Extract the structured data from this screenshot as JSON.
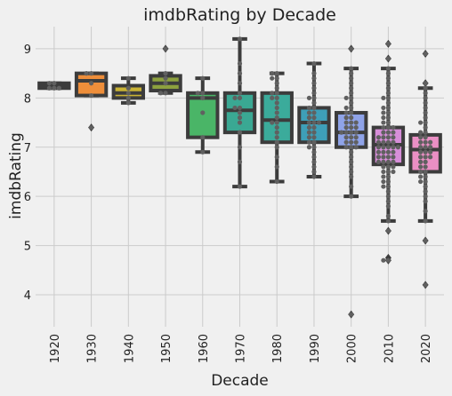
{
  "chart_data": {
    "type": "box",
    "title": "imdbRating by Decade",
    "xlabel": "Decade",
    "ylabel": "imdbRating",
    "ylim": [
      3.35,
      9.45
    ],
    "yticks": [
      4,
      5,
      6,
      7,
      8,
      9
    ],
    "grid": true,
    "categories": [
      "1920",
      "1930",
      "1940",
      "1950",
      "1960",
      "1970",
      "1980",
      "1990",
      "2000",
      "2010",
      "2020"
    ],
    "boxes": [
      {
        "decade": "1920",
        "color": "#2c8ed6",
        "q1": 8.2,
        "median": 8.25,
        "q3": 8.3,
        "whisker_low": 8.2,
        "whisker_high": 8.3,
        "outliers": []
      },
      {
        "decade": "1930",
        "color": "#ee8e3a",
        "q1": 8.05,
        "median": 8.35,
        "q3": 8.5,
        "whisker_low": 8.05,
        "whisker_high": 8.5,
        "outliers": [
          7.4
        ]
      },
      {
        "decade": "1940",
        "color": "#c9b335",
        "q1": 8.0,
        "median": 8.1,
        "q3": 8.25,
        "whisker_low": 7.9,
        "whisker_high": 8.4,
        "outliers": []
      },
      {
        "decade": "1950",
        "color": "#8da13e",
        "q1": 8.15,
        "median": 8.3,
        "q3": 8.45,
        "whisker_low": 8.1,
        "whisker_high": 8.5,
        "outliers": [
          9.0
        ]
      },
      {
        "decade": "1960",
        "color": "#4ab567",
        "q1": 7.2,
        "median": 8.0,
        "q3": 8.1,
        "whisker_low": 6.9,
        "whisker_high": 8.4,
        "outliers": []
      },
      {
        "decade": "1970",
        "color": "#3aa893",
        "q1": 7.3,
        "median": 7.75,
        "q3": 8.1,
        "whisker_low": 6.2,
        "whisker_high": 9.2,
        "outliers": []
      },
      {
        "decade": "1980",
        "color": "#3bab9b",
        "q1": 7.1,
        "median": 7.55,
        "q3": 8.1,
        "whisker_low": 6.3,
        "whisker_high": 8.5,
        "outliers": []
      },
      {
        "decade": "1990",
        "color": "#3e9fb8",
        "q1": 7.1,
        "median": 7.5,
        "q3": 7.8,
        "whisker_low": 6.4,
        "whisker_high": 8.7,
        "outliers": []
      },
      {
        "decade": "2000",
        "color": "#8fa3e8",
        "q1": 7.0,
        "median": 7.3,
        "q3": 7.7,
        "whisker_low": 6.0,
        "whisker_high": 8.6,
        "outliers": [
          3.6,
          9.0
        ]
      },
      {
        "decade": "2010",
        "color": "#d78ed9",
        "q1": 6.65,
        "median": 7.05,
        "q3": 7.4,
        "whisker_low": 5.5,
        "whisker_high": 8.6,
        "outliers": [
          4.7,
          4.75,
          5.3,
          8.8,
          9.1
        ]
      },
      {
        "decade": "2020",
        "color": "#ea8fc4",
        "q1": 6.5,
        "median": 6.95,
        "q3": 7.25,
        "whisker_low": 5.5,
        "whisker_high": 8.2,
        "outliers": [
          4.2,
          5.1,
          8.3,
          8.9
        ]
      }
    ],
    "swarm": [
      {
        "decade": "1920",
        "values": [
          8.2,
          8.3,
          8.3,
          8.25,
          8.2
        ]
      },
      {
        "decade": "1930",
        "values": [
          7.4,
          8.05,
          8.3,
          8.5,
          8.5
        ]
      },
      {
        "decade": "1940",
        "values": [
          7.9,
          8.0,
          8.1,
          8.2,
          8.4
        ]
      },
      {
        "decade": "1950",
        "values": [
          8.1,
          8.15,
          8.3,
          8.4,
          8.5,
          9.0
        ]
      },
      {
        "decade": "1960",
        "values": [
          6.9,
          7.2,
          7.7,
          8.0,
          8.1,
          8.1,
          8.4
        ]
      },
      {
        "decade": "1970",
        "values": [
          6.2,
          6.7,
          7.0,
          7.3,
          7.5,
          7.6,
          7.7,
          7.8,
          7.8,
          8.0,
          8.0,
          8.1,
          8.3,
          8.5,
          8.7,
          9.2
        ]
      },
      {
        "decade": "1980",
        "values": [
          6.3,
          6.6,
          6.8,
          7.0,
          7.1,
          7.2,
          7.3,
          7.4,
          7.5,
          7.5,
          7.6,
          7.7,
          7.8,
          7.9,
          8.0,
          8.0,
          8.1,
          8.1,
          8.2,
          8.3,
          8.4,
          8.4,
          8.5,
          8.5
        ]
      },
      {
        "decade": "1990",
        "values": [
          6.4,
          6.5,
          6.6,
          6.7,
          6.8,
          6.9,
          7.0,
          7.0,
          7.1,
          7.1,
          7.2,
          7.2,
          7.3,
          7.3,
          7.4,
          7.4,
          7.5,
          7.5,
          7.5,
          7.6,
          7.6,
          7.7,
          7.7,
          7.8,
          7.8,
          7.9,
          8.0,
          8.0,
          8.1,
          8.2,
          8.3,
          8.4,
          8.5,
          8.7
        ]
      },
      {
        "decade": "2000",
        "values": [
          3.6,
          6.0,
          6.2,
          6.4,
          6.5,
          6.6,
          6.7,
          6.8,
          6.9,
          7.0,
          7.0,
          7.0,
          7.1,
          7.1,
          7.1,
          7.2,
          7.2,
          7.2,
          7.3,
          7.3,
          7.3,
          7.3,
          7.4,
          7.4,
          7.4,
          7.5,
          7.5,
          7.5,
          7.6,
          7.6,
          7.7,
          7.7,
          7.8,
          7.8,
          7.9,
          8.0,
          8.0,
          8.1,
          8.2,
          8.3,
          8.4,
          8.5,
          8.6,
          9.0
        ]
      },
      {
        "decade": "2010",
        "values": [
          4.7,
          4.75,
          5.3,
          5.5,
          5.6,
          5.8,
          5.9,
          6.0,
          6.1,
          6.2,
          6.2,
          6.3,
          6.3,
          6.4,
          6.4,
          6.5,
          6.5,
          6.5,
          6.6,
          6.6,
          6.6,
          6.7,
          6.7,
          6.7,
          6.7,
          6.8,
          6.8,
          6.8,
          6.8,
          6.9,
          6.9,
          6.9,
          6.9,
          7.0,
          7.0,
          7.0,
          7.0,
          7.0,
          7.1,
          7.1,
          7.1,
          7.1,
          7.2,
          7.2,
          7.2,
          7.2,
          7.3,
          7.3,
          7.3,
          7.4,
          7.4,
          7.4,
          7.5,
          7.5,
          7.6,
          7.6,
          7.7,
          7.7,
          7.8,
          7.8,
          7.9,
          8.0,
          8.0,
          8.1,
          8.2,
          8.3,
          8.4,
          8.5,
          8.6,
          8.8,
          9.1
        ]
      },
      {
        "decade": "2020",
        "values": [
          4.2,
          5.1,
          5.5,
          5.7,
          5.9,
          6.0,
          6.1,
          6.2,
          6.3,
          6.3,
          6.4,
          6.4,
          6.5,
          6.5,
          6.6,
          6.6,
          6.7,
          6.7,
          6.8,
          6.8,
          6.8,
          6.9,
          6.9,
          6.9,
          7.0,
          7.0,
          7.0,
          7.1,
          7.1,
          7.1,
          7.2,
          7.2,
          7.3,
          7.3,
          7.4,
          7.5,
          7.5,
          7.6,
          7.7,
          7.8,
          7.9,
          8.0,
          8.1,
          8.2,
          8.3,
          8.9
        ]
      }
    ],
    "colors": {
      "background": "#f0f0f0",
      "grid": "#cbcbcb",
      "box_edge": "#3c3c3c",
      "swarm_point": "#606060"
    }
  }
}
